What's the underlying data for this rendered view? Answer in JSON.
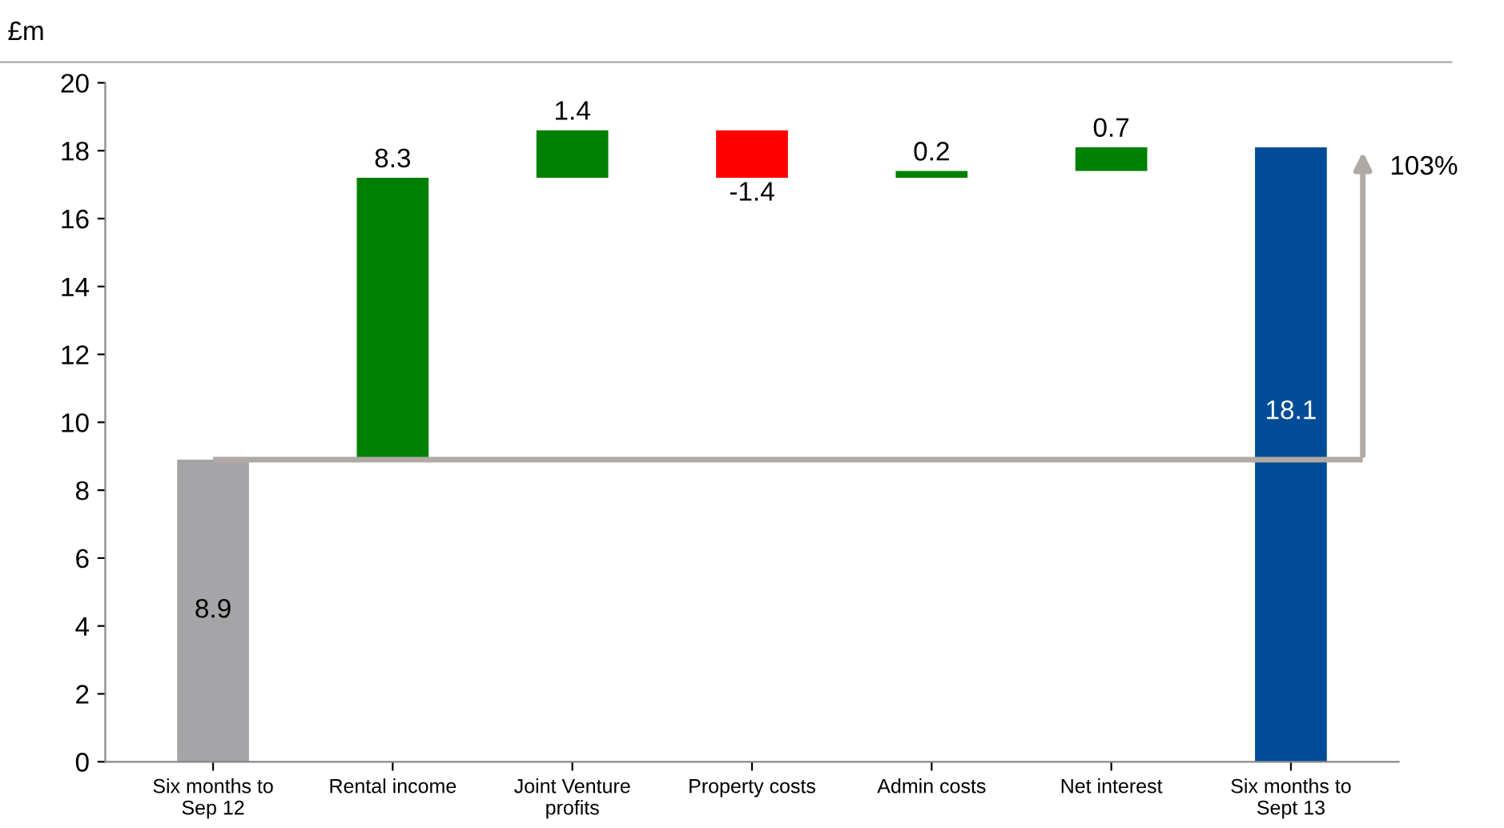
{
  "chart_data": {
    "type": "bar",
    "ylabel": "£m",
    "categories": [
      "Six months to\nSep 12",
      "Rental income",
      "Joint Venture\nprofits",
      "Property costs",
      "Admin costs",
      "Net interest",
      "Six months to\nSept 13"
    ],
    "values": [
      8.9,
      8.3,
      1.4,
      -1.4,
      0.2,
      0.7,
      18.1
    ],
    "base": [
      0,
      8.9,
      17.2,
      18.6,
      17.2,
      17.4,
      0
    ],
    "colors": [
      "#a5a5a8",
      "#008000",
      "#008000",
      "#ff0000",
      "#008000",
      "#008000",
      "#004c97"
    ],
    "data_labels": true,
    "annotations": [
      "103%"
    ],
    "ylim": [
      0,
      20
    ],
    "yticks": [
      0,
      2,
      4,
      6,
      8,
      10,
      12,
      14,
      16,
      18,
      20
    ],
    "ref_lines": [
      {
        "axis": "y",
        "value": 8.9,
        "color": "#b0a9a4"
      }
    ],
    "grid": false
  }
}
